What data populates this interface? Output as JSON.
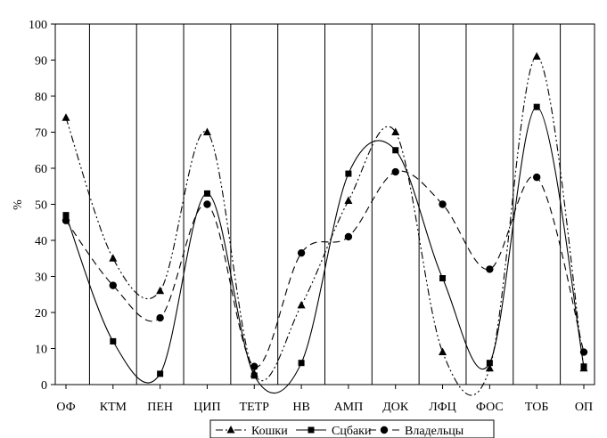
{
  "chart_data": {
    "type": "line",
    "title": "",
    "xlabel": "",
    "ylabel": "%",
    "ylim": [
      0,
      100
    ],
    "yticks": [
      0,
      10,
      20,
      30,
      40,
      50,
      60,
      70,
      80,
      90,
      100
    ],
    "grid": "vertical",
    "legend_position": "bottom",
    "categories": [
      "ОФ",
      "КТМ",
      "ПЕН",
      "ЦИП",
      "ТЕТР",
      "НВ",
      "АМП",
      "ДОК",
      "ЛФЦ",
      "ФОС",
      "ТОБ",
      "ОП"
    ],
    "series": [
      {
        "name": "Кошки",
        "marker": "triangle",
        "dash": "dash-dot-dot",
        "values": [
          74,
          35,
          26,
          70,
          3,
          22,
          51,
          70,
          9,
          4.5,
          91,
          4.5
        ]
      },
      {
        "name": "Сцбаки",
        "marker": "square",
        "dash": "solid",
        "values": [
          47,
          12,
          3,
          53,
          2.5,
          6,
          58.5,
          65,
          29.5,
          6,
          77,
          5
        ]
      },
      {
        "name": "Владельцы",
        "marker": "circle",
        "dash": "dashed",
        "values": [
          45.5,
          27.5,
          18.5,
          50,
          5,
          36.5,
          41,
          59,
          50,
          32,
          57.5,
          9
        ]
      }
    ]
  }
}
